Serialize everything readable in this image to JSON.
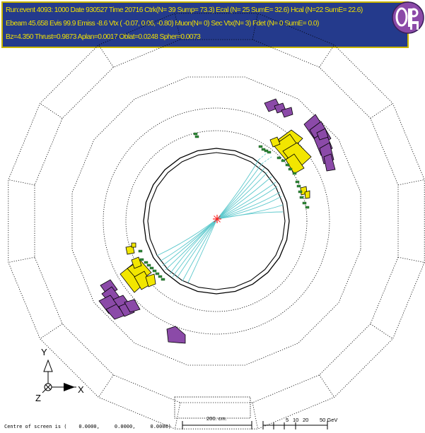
{
  "header": {
    "line1": "Run:event  4093:   1000  Date 930527 Time  20716 Ctrk(N= 39 Sump= 73.3)  Ecal (N= 25 SumE= 32.6)  Hcal (N=22 SumE= 22.6)",
    "line2": "Ebeam 45.658 Evis  99.9 Emiss  -8.6 Vtx (  -0.07,    0.06,   -0.80)  Muon(N=  0)  Sec Vtx(N=  3)  Fdet (N= 0 SumE=  0.0)",
    "line3": "Bz=4.350  Thrust=0.9873 Aplan=0.0017 Oblat=0.0248 Spher=0.0073"
  },
  "logo": {
    "text": "OPAL"
  },
  "axes": {
    "y_label": "Y",
    "z_label": "Z",
    "x_label": "X"
  },
  "footer": {
    "centre_text": "Centre of screen is (    0.0000,     0.0000,     0.0000)"
  },
  "scale": {
    "length_label": "200. cm.",
    "energy_labels": [
      "5",
      "10",
      "20",
      "50 GeV"
    ]
  },
  "colors": {
    "header_bg": "#243a8c",
    "header_text": "#f0e000",
    "track": "#5cc8cc",
    "ecal": "#f2e600",
    "hcal": "#8b4aa8",
    "muon_hits": "#2f8a3a",
    "vertex": "#ff2020"
  }
}
